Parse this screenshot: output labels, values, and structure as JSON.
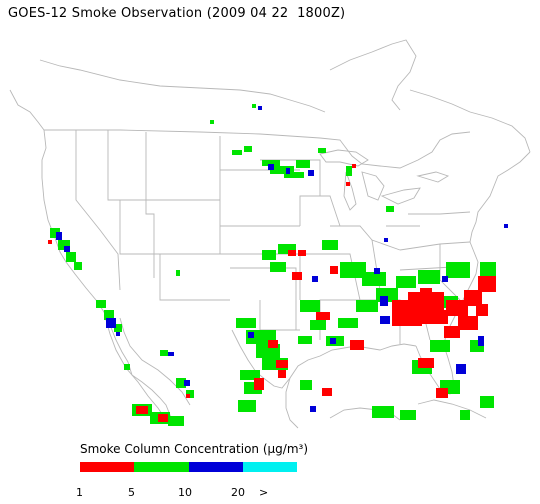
{
  "title": "GOES-12 Smoke Observation (2009 04 22  1800Z)",
  "legend": {
    "title": "Smoke Column Concentration (µg/m³)",
    "colors": [
      "#ff0000",
      "#00e400",
      "#0000d8",
      "#00f0f0"
    ],
    "ticks": [
      "1",
      "5",
      "10",
      "20",
      ">"
    ]
  }
}
